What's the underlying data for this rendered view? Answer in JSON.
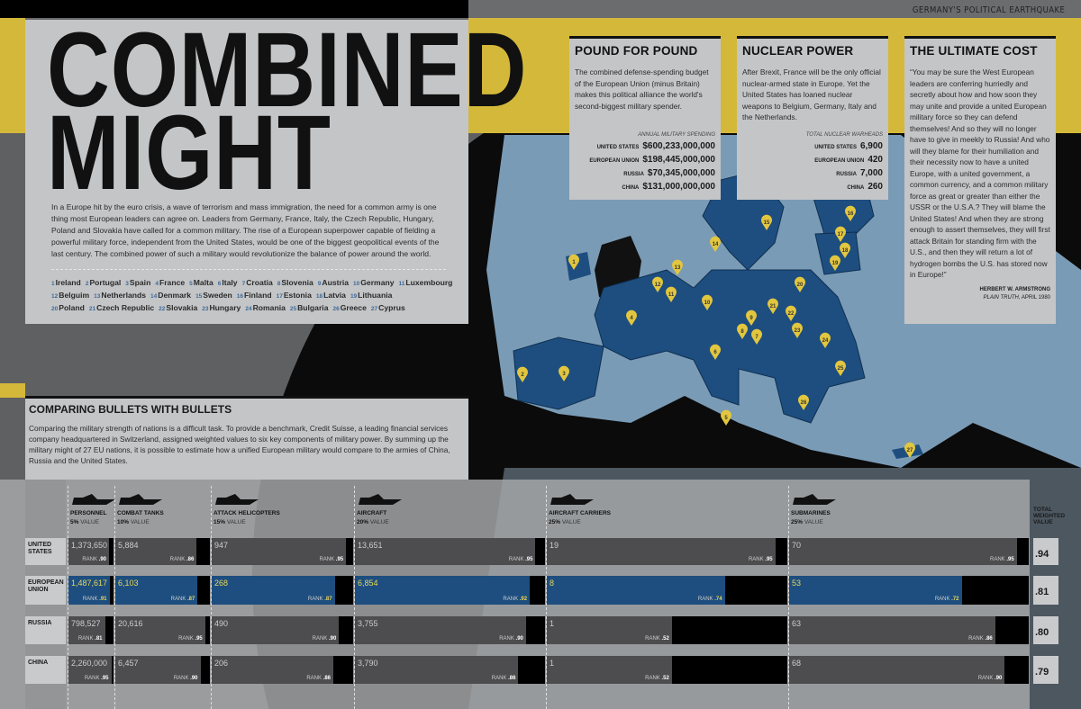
{
  "header": {
    "kicker": "GERMANY'S POLITICAL EARTHQUAKE"
  },
  "colors": {
    "yellow": "#d4b83a",
    "eu_blue": "#1d4e7f",
    "other_bar": "#4d4d50",
    "panel": "#c4c5c7"
  },
  "main": {
    "title_line1": "COMBINED",
    "title_line2": "MIGHT",
    "intro": "In a Europe hit by the euro crisis, a wave of terrorism and mass immigration, the need for a common army is one thing most European leaders can agree on. Leaders from Germany, France, Italy, the Czech Republic, Hungary, Poland and Slovakia have called for a common military. The rise of a European superpower capable of fielding a powerful military force, independent from the United States, would be one of the biggest geopolitical events of the last century. The combined power of such a military would revolutionize the balance of power around the world.",
    "legend": [
      {
        "n": "1",
        "name": "Ireland"
      },
      {
        "n": "2",
        "name": "Portugal"
      },
      {
        "n": "3",
        "name": "Spain"
      },
      {
        "n": "4",
        "name": "France"
      },
      {
        "n": "5",
        "name": "Malta"
      },
      {
        "n": "6",
        "name": "Italy"
      },
      {
        "n": "7",
        "name": "Croatia"
      },
      {
        "n": "8",
        "name": "Slovenia"
      },
      {
        "n": "9",
        "name": "Austria"
      },
      {
        "n": "10",
        "name": "Germany"
      },
      {
        "n": "11",
        "name": "Luxembourg"
      },
      {
        "n": "12",
        "name": "Belguim"
      },
      {
        "n": "13",
        "name": "Netherlands"
      },
      {
        "n": "14",
        "name": "Denmark"
      },
      {
        "n": "15",
        "name": "Sweden"
      },
      {
        "n": "16",
        "name": "Finland"
      },
      {
        "n": "17",
        "name": "Estonia"
      },
      {
        "n": "18",
        "name": "Latvia"
      },
      {
        "n": "19",
        "name": "Lithuania"
      },
      {
        "n": "20",
        "name": "Poland"
      },
      {
        "n": "21",
        "name": "Czech Republic"
      },
      {
        "n": "22",
        "name": "Slovakia"
      },
      {
        "n": "23",
        "name": "Hungary"
      },
      {
        "n": "24",
        "name": "Romania"
      },
      {
        "n": "25",
        "name": "Bulgaria"
      },
      {
        "n": "26",
        "name": "Greece"
      },
      {
        "n": "27",
        "name": "Cyprus"
      }
    ]
  },
  "pound": {
    "title": "POUND FOR POUND",
    "text": "The combined defense-spending budget of the European Union (minus Britain) makes this political alliance the world's second-biggest military spender.",
    "caption": "ANNUAL MILITARY SPENDING",
    "rows": [
      {
        "k": "UNITED STATES",
        "v": "$600,233,000,000"
      },
      {
        "k": "EUROPEAN UNION",
        "v": "$198,445,000,000"
      },
      {
        "k": "RUSSIA",
        "v": "$70,345,000,000"
      },
      {
        "k": "CHINA",
        "v": "$131,000,000,000"
      }
    ]
  },
  "nuclear": {
    "title": "NUCLEAR POWER",
    "text": "After Brexit, France will be the only official nuclear-armed state in Europe. Yet the United States has loaned nuclear weapons to Belgium, Germany, Italy and the Netherlands.",
    "caption": "TOTAL NUCLEAR WARHEADS",
    "rows": [
      {
        "k": "UNITED STATES",
        "v": "6,900"
      },
      {
        "k": "EUROPEAN UNION",
        "v": "420"
      },
      {
        "k": "RUSSIA",
        "v": "7,000"
      },
      {
        "k": "CHINA",
        "v": "260"
      }
    ]
  },
  "ultimate": {
    "title": "THE ULTIMATE COST",
    "quote": "“You may be sure the West European leaders are conferring hurriedly and secretly about how and how soon they may unite and provide a united European military force so they can defend themselves! And so they will no longer have to give in meekly to Russia! And who will they blame for their humiliation and their necessity now to have a united Europe, with a united government, a common currency, and a common military force as great or greater than either the USSR or the U.S.A.? They will blame the United States! And when they are strong enough to assert themselves, they will first attack Britain for standing firm with the U.S., and then they will return a lot of hydrogen bombs the U.S. has stored now in Europe!”",
    "author": "HERBERT W. ARMSTRONG",
    "source": "PLAIN TRUTH,",
    "date": "APRIL 1980"
  },
  "compare": {
    "title": "COMPARING BULLETS WITH BULLETS",
    "text": "Comparing the military strength of nations is a difficult task. To provide a benchmark, Credit Suisse, a leading financial services company headquartered in Switzerland, assigned weighted values to six key components of military power. By summing up the military might of 27 EU nations, it is possible to estimate how a unified European military would compare to the armies of China, Russia and the United States."
  },
  "chart_data": {
    "type": "bar",
    "rank_label": "RANK",
    "value_label": "VALUE",
    "total_label": "TOTAL WEIGHTED VALUE",
    "categories": [
      {
        "name": "PERSONNEL",
        "weight": "5%",
        "icon": "soldier-icon"
      },
      {
        "name": "COMBAT TANKS",
        "weight": "10%",
        "icon": "tank-icon"
      },
      {
        "name": "ATTACK HELICOPTERS",
        "weight": "15%",
        "icon": "helicopter-icon"
      },
      {
        "name": "AIRCRAFT",
        "weight": "20%",
        "icon": "fighter-jet-icon"
      },
      {
        "name": "AIRCRAFT CARRIERS",
        "weight": "25%",
        "icon": "carrier-icon"
      },
      {
        "name": "SUBMARINES",
        "weight": "25%",
        "icon": "submarine-icon"
      }
    ],
    "series": [
      {
        "name": "UNITED STATES",
        "values": [
          "1,373,650",
          "5,884",
          "947",
          "13,651",
          "19",
          "70"
        ],
        "ranks": [
          0.9,
          0.86,
          0.95,
          0.95,
          0.95,
          0.95
        ],
        "total": ".94"
      },
      {
        "name": "EUROPEAN UNION",
        "values": [
          "1,487,617",
          "6,103",
          "268",
          "6,854",
          "8",
          "53"
        ],
        "ranks": [
          0.91,
          0.87,
          0.87,
          0.92,
          0.74,
          0.72
        ],
        "total": ".81",
        "highlight": true
      },
      {
        "name": "RUSSIA",
        "values": [
          "798,527",
          "20,616",
          "490",
          "3,755",
          "1",
          "63"
        ],
        "ranks": [
          0.81,
          0.95,
          0.9,
          0.9,
          0.52,
          0.86
        ],
        "total": ".80"
      },
      {
        "name": "CHINA",
        "values": [
          "2,260,000",
          "6,457",
          "206",
          "3,790",
          "1",
          "68"
        ],
        "ranks": [
          0.95,
          0.9,
          0.86,
          0.86,
          0.52,
          0.9
        ],
        "total": ".79"
      }
    ]
  }
}
